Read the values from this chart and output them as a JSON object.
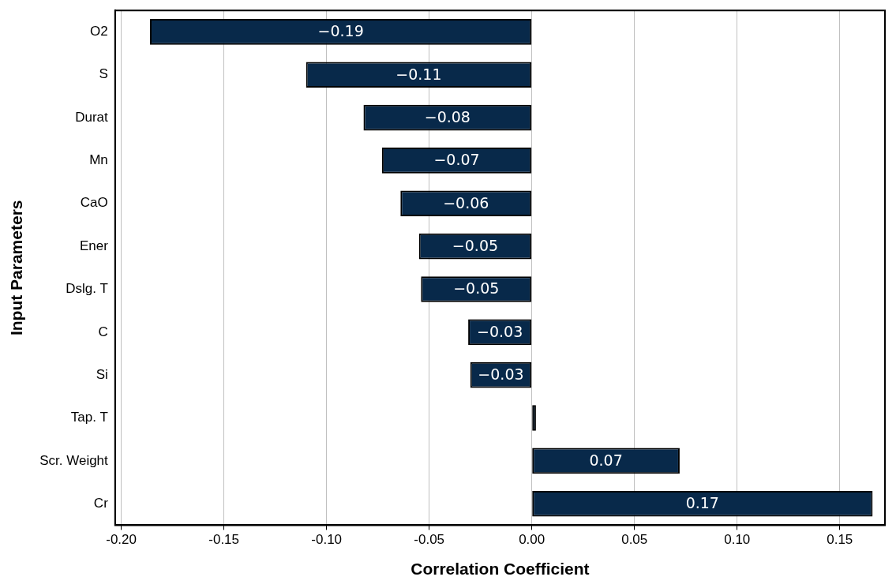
{
  "chart_data": {
    "type": "bar",
    "orientation": "horizontal",
    "xlabel": "Correlation Coefficient",
    "ylabel": "Input Parameters",
    "categories": [
      "O2",
      "S",
      "Durat",
      "Mn",
      "CaO",
      "Ener",
      "Dslg. T",
      "C",
      "Si",
      "Tap. T",
      "Scr. Weight",
      "Cr"
    ],
    "values": [
      -0.186,
      -0.11,
      -0.082,
      -0.073,
      -0.064,
      -0.055,
      -0.054,
      -0.031,
      -0.03,
      0.002,
      0.072,
      0.166
    ],
    "value_labels": [
      "−0.19",
      "−0.11",
      "−0.08",
      "−0.07",
      "−0.06",
      "−0.05",
      "−0.05",
      "−0.03",
      "−0.03",
      null,
      "0.07",
      "0.17"
    ],
    "color": "#08294a",
    "xlim": [
      -0.203,
      0.172
    ],
    "xticks": [
      {
        "value": -0.2,
        "label": "-0.20"
      },
      {
        "value": -0.15,
        "label": "-0.15"
      },
      {
        "value": -0.1,
        "label": "-0.10"
      },
      {
        "value": -0.05,
        "label": "-0.05"
      },
      {
        "value": 0,
        "label": "0.00"
      },
      {
        "value": 0.05,
        "label": "0.05"
      },
      {
        "value": 0.1,
        "label": "0.10"
      },
      {
        "value": 0.15,
        "label": "0.15"
      }
    ],
    "grid": "x",
    "legend": false
  }
}
